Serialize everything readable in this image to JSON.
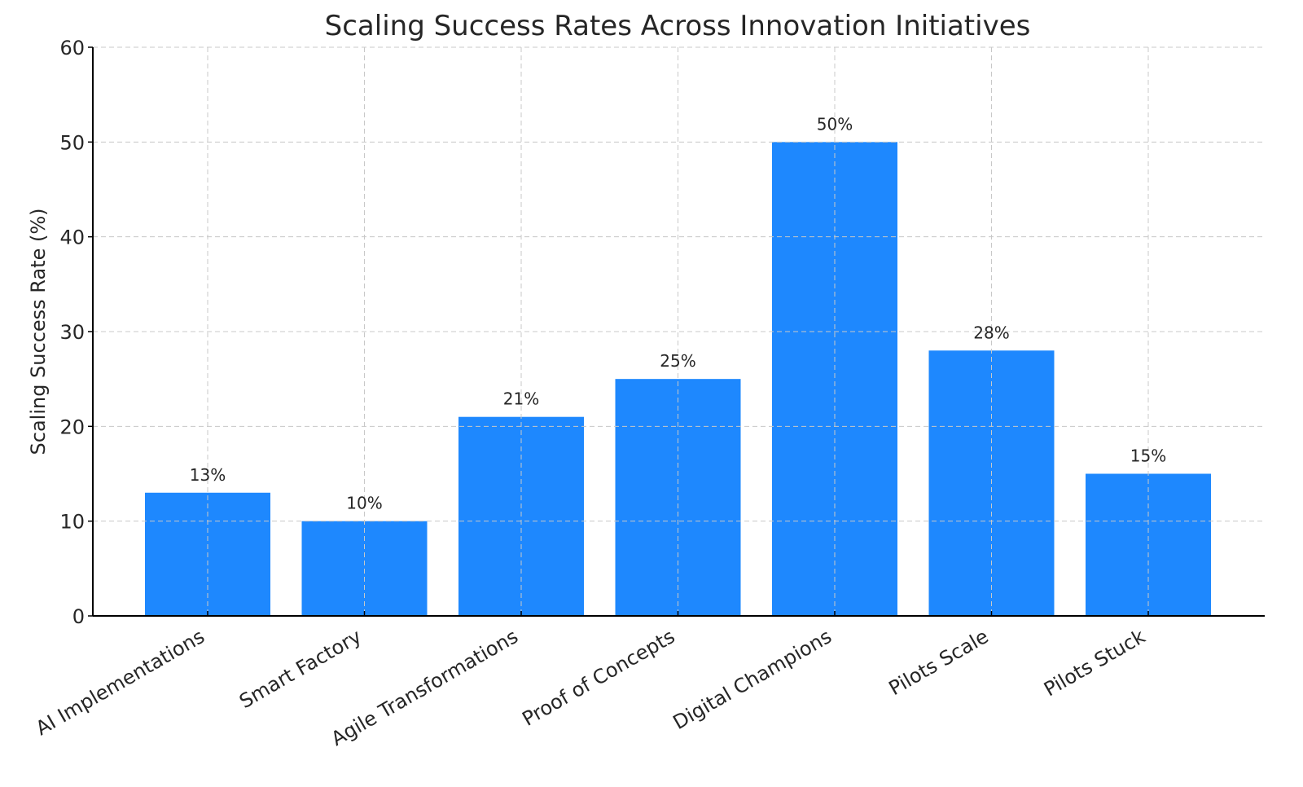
{
  "chart_data": {
    "type": "bar",
    "title": "Scaling Success Rates Across Innovation Initiatives",
    "xlabel": "",
    "ylabel": "Scaling Success Rate (%)",
    "categories": [
      "AI Implementations",
      "Smart Factory",
      "Agile Transformations",
      "Proof of Concepts",
      "Digital Champions",
      "Pilots Scale",
      "Pilots Stuck"
    ],
    "values": [
      13,
      10,
      21,
      25,
      50,
      28,
      15
    ],
    "data_labels": [
      "13%",
      "10%",
      "21%",
      "25%",
      "50%",
      "28%",
      "15%"
    ],
    "ylim": [
      0,
      60
    ],
    "yticks": [
      0,
      10,
      20,
      30,
      40,
      50,
      60
    ],
    "ytick_labels": [
      "0",
      "10",
      "20",
      "30",
      "40",
      "50",
      "60"
    ],
    "grid": true,
    "bar_color": "#1e88fe",
    "x_label_rotation_deg": -30
  }
}
